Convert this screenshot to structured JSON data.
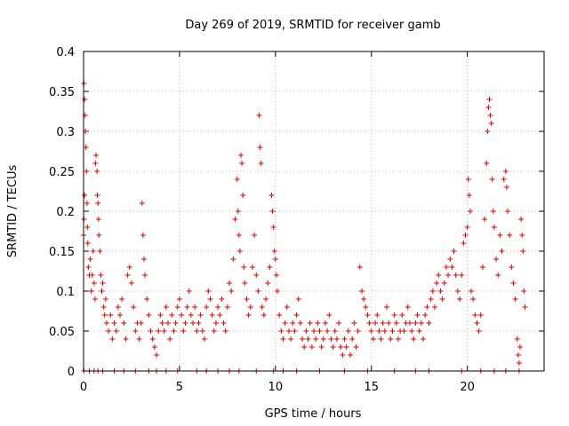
{
  "chart_data": {
    "type": "scatter",
    "title": "Day 269 of 2019, SRMTID for receiver gamb",
    "xlabel": "GPS time / hours",
    "ylabel": "SRMTID / TECUs",
    "xlim": [
      0,
      24
    ],
    "ylim": [
      0,
      0.4
    ],
    "xticks": [
      0,
      5,
      10,
      15,
      20
    ],
    "xtick_labels": [
      "0",
      "5",
      "10",
      "15",
      "20"
    ],
    "yticks": [
      0,
      0.05,
      0.1,
      0.15,
      0.2,
      0.25,
      0.3,
      0.35,
      0.4
    ],
    "ytick_labels": [
      "0",
      "0.05",
      "0.1",
      "0.15",
      "0.2",
      "0.25",
      "0.3",
      "0.35",
      "0.4"
    ],
    "grid": true,
    "marker": "+",
    "series": [
      {
        "name": "SRMTID",
        "color": "#e00000",
        "points": [
          [
            0.02,
            0.36
          ],
          [
            0.05,
            0.34
          ],
          [
            0.08,
            0.32
          ],
          [
            0.1,
            0.3
          ],
          [
            0.12,
            0.28
          ],
          [
            0.05,
            0.22
          ],
          [
            0.02,
            0.19
          ],
          [
            0.0,
            0.17
          ],
          [
            0.15,
            0.25
          ],
          [
            0.18,
            0.21
          ],
          [
            0.2,
            0.18
          ],
          [
            0.22,
            0.16
          ],
          [
            0.25,
            0.13
          ],
          [
            0.3,
            0.12
          ],
          [
            0.35,
            0.14
          ],
          [
            0.4,
            0.1
          ],
          [
            0.45,
            0.12
          ],
          [
            0.5,
            0.15
          ],
          [
            0.55,
            0.11
          ],
          [
            0.6,
            0.09
          ],
          [
            0.62,
            0.26
          ],
          [
            0.65,
            0.27
          ],
          [
            0.7,
            0.25
          ],
          [
            0.72,
            0.22
          ],
          [
            0.75,
            0.21
          ],
          [
            0.78,
            0.19
          ],
          [
            0.8,
            0.17
          ],
          [
            0.85,
            0.15
          ],
          [
            0.9,
            0.12
          ],
          [
            0.95,
            0.1
          ],
          [
            1.0,
            0.11
          ],
          [
            1.05,
            0.08
          ],
          [
            1.1,
            0.07
          ],
          [
            1.15,
            0.09
          ],
          [
            1.2,
            0.06
          ],
          [
            1.3,
            0.05
          ],
          [
            1.4,
            0.07
          ],
          [
            1.5,
            0.04
          ],
          [
            1.6,
            0.06
          ],
          [
            1.7,
            0.05
          ],
          [
            1.8,
            0.08
          ],
          [
            1.9,
            0.07
          ],
          [
            2.0,
            0.09
          ],
          [
            2.1,
            0.06
          ],
          [
            2.2,
            0.04
          ],
          [
            2.3,
            0.12
          ],
          [
            2.4,
            0.13
          ],
          [
            2.5,
            0.11
          ],
          [
            2.6,
            0.08
          ],
          [
            2.7,
            0.05
          ],
          [
            2.8,
            0.06
          ],
          [
            2.9,
            0.04
          ],
          [
            3.0,
            0.06
          ],
          [
            3.05,
            0.21
          ],
          [
            3.1,
            0.17
          ],
          [
            3.15,
            0.14
          ],
          [
            3.2,
            0.12
          ],
          [
            3.3,
            0.09
          ],
          [
            3.4,
            0.07
          ],
          [
            3.5,
            0.05
          ],
          [
            3.6,
            0.04
          ],
          [
            3.7,
            0.03
          ],
          [
            3.8,
            0.02
          ],
          [
            3.9,
            0.05
          ],
          [
            4.0,
            0.07
          ],
          [
            4.1,
            0.06
          ],
          [
            4.2,
            0.05
          ],
          [
            4.3,
            0.08
          ],
          [
            4.4,
            0.06
          ],
          [
            4.5,
            0.04
          ],
          [
            4.6,
            0.07
          ],
          [
            4.7,
            0.05
          ],
          [
            4.8,
            0.06
          ],
          [
            4.9,
            0.08
          ],
          [
            5.0,
            0.09
          ],
          [
            5.1,
            0.07
          ],
          [
            5.2,
            0.05
          ],
          [
            5.3,
            0.06
          ],
          [
            5.4,
            0.08
          ],
          [
            5.5,
            0.1
          ],
          [
            5.6,
            0.07
          ],
          [
            5.7,
            0.06
          ],
          [
            5.8,
            0.08
          ],
          [
            5.9,
            0.05
          ],
          [
            6.0,
            0.06
          ],
          [
            6.1,
            0.07
          ],
          [
            6.2,
            0.05
          ],
          [
            6.3,
            0.04
          ],
          [
            6.4,
            0.08
          ],
          [
            6.5,
            0.1
          ],
          [
            6.6,
            0.09
          ],
          [
            6.7,
            0.07
          ],
          [
            6.8,
            0.05
          ],
          [
            6.9,
            0.06
          ],
          [
            7.0,
            0.08
          ],
          [
            7.1,
            0.07
          ],
          [
            7.2,
            0.09
          ],
          [
            7.3,
            0.06
          ],
          [
            7.4,
            0.05
          ],
          [
            7.5,
            0.08
          ],
          [
            7.6,
            0.11
          ],
          [
            7.7,
            0.1
          ],
          [
            7.8,
            0.14
          ],
          [
            7.9,
            0.19
          ],
          [
            8.0,
            0.24
          ],
          [
            8.05,
            0.2
          ],
          [
            8.1,
            0.17
          ],
          [
            8.15,
            0.15
          ],
          [
            8.2,
            0.27
          ],
          [
            8.25,
            0.26
          ],
          [
            8.3,
            0.22
          ],
          [
            8.35,
            0.13
          ],
          [
            8.4,
            0.11
          ],
          [
            8.5,
            0.09
          ],
          [
            8.6,
            0.07
          ],
          [
            8.7,
            0.08
          ],
          [
            8.8,
            0.13
          ],
          [
            8.9,
            0.17
          ],
          [
            9.0,
            0.12
          ],
          [
            9.1,
            0.1
          ],
          [
            9.15,
            0.32
          ],
          [
            9.2,
            0.28
          ],
          [
            9.25,
            0.26
          ],
          [
            9.3,
            0.08
          ],
          [
            9.4,
            0.07
          ],
          [
            9.5,
            0.09
          ],
          [
            9.6,
            0.11
          ],
          [
            9.7,
            0.13
          ],
          [
            9.8,
            0.22
          ],
          [
            9.85,
            0.2
          ],
          [
            9.9,
            0.18
          ],
          [
            9.95,
            0.15
          ],
          [
            10.0,
            0.14
          ],
          [
            10.05,
            0.12
          ],
          [
            10.1,
            0.1
          ],
          [
            10.2,
            0.07
          ],
          [
            10.3,
            0.05
          ],
          [
            10.4,
            0.04
          ],
          [
            10.5,
            0.06
          ],
          [
            10.6,
            0.08
          ],
          [
            10.7,
            0.05
          ],
          [
            10.8,
            0.04
          ],
          [
            10.9,
            0.06
          ],
          [
            11.0,
            0.05
          ],
          [
            11.1,
            0.07
          ],
          [
            11.2,
            0.09
          ],
          [
            11.3,
            0.06
          ],
          [
            11.4,
            0.04
          ],
          [
            11.5,
            0.03
          ],
          [
            11.6,
            0.05
          ],
          [
            11.7,
            0.04
          ],
          [
            11.8,
            0.06
          ],
          [
            11.9,
            0.03
          ],
          [
            12.0,
            0.05
          ],
          [
            12.1,
            0.04
          ],
          [
            12.2,
            0.06
          ],
          [
            12.3,
            0.05
          ],
          [
            12.4,
            0.03
          ],
          [
            12.5,
            0.04
          ],
          [
            12.6,
            0.06
          ],
          [
            12.7,
            0.05
          ],
          [
            12.8,
            0.07
          ],
          [
            12.9,
            0.04
          ],
          [
            13.0,
            0.03
          ],
          [
            13.1,
            0.05
          ],
          [
            13.2,
            0.04
          ],
          [
            13.3,
            0.06
          ],
          [
            13.4,
            0.03
          ],
          [
            13.5,
            0.02
          ],
          [
            13.6,
            0.04
          ],
          [
            13.7,
            0.03
          ],
          [
            13.8,
            0.05
          ],
          [
            13.9,
            0.02
          ],
          [
            14.0,
            0.04
          ],
          [
            14.1,
            0.06
          ],
          [
            14.2,
            0.03
          ],
          [
            14.3,
            0.05
          ],
          [
            14.4,
            0.13
          ],
          [
            14.5,
            0.1
          ],
          [
            14.6,
            0.09
          ],
          [
            14.7,
            0.08
          ],
          [
            14.8,
            0.07
          ],
          [
            14.9,
            0.06
          ],
          [
            15.0,
            0.05
          ],
          [
            15.1,
            0.04
          ],
          [
            15.2,
            0.06
          ],
          [
            15.3,
            0.07
          ],
          [
            15.4,
            0.05
          ],
          [
            15.5,
            0.04
          ],
          [
            15.6,
            0.06
          ],
          [
            15.7,
            0.05
          ],
          [
            15.8,
            0.08
          ],
          [
            15.9,
            0.06
          ],
          [
            16.0,
            0.04
          ],
          [
            16.1,
            0.05
          ],
          [
            16.2,
            0.07
          ],
          [
            16.3,
            0.06
          ],
          [
            16.4,
            0.04
          ],
          [
            16.5,
            0.05
          ],
          [
            16.6,
            0.07
          ],
          [
            16.7,
            0.05
          ],
          [
            16.8,
            0.06
          ],
          [
            16.9,
            0.08
          ],
          [
            17.0,
            0.06
          ],
          [
            17.1,
            0.05
          ],
          [
            17.2,
            0.04
          ],
          [
            17.3,
            0.06
          ],
          [
            17.4,
            0.07
          ],
          [
            17.5,
            0.05
          ],
          [
            17.6,
            0.06
          ],
          [
            17.7,
            0.04
          ],
          [
            17.8,
            0.07
          ],
          [
            17.9,
            0.08
          ],
          [
            18.0,
            0.06
          ],
          [
            18.1,
            0.09
          ],
          [
            18.2,
            0.1
          ],
          [
            18.3,
            0.08
          ],
          [
            18.4,
            0.11
          ],
          [
            18.5,
            0.12
          ],
          [
            18.6,
            0.1
          ],
          [
            18.7,
            0.09
          ],
          [
            18.8,
            0.11
          ],
          [
            18.9,
            0.13
          ],
          [
            19.0,
            0.12
          ],
          [
            19.1,
            0.14
          ],
          [
            19.2,
            0.13
          ],
          [
            19.3,
            0.15
          ],
          [
            19.4,
            0.12
          ],
          [
            19.5,
            0.1
          ],
          [
            19.6,
            0.09
          ],
          [
            19.7,
            0.12
          ],
          [
            19.8,
            0.16
          ],
          [
            19.9,
            0.17
          ],
          [
            20.0,
            0.18
          ],
          [
            20.05,
            0.24
          ],
          [
            20.1,
            0.22
          ],
          [
            20.15,
            0.2
          ],
          [
            20.2,
            0.1
          ],
          [
            20.3,
            0.09
          ],
          [
            20.4,
            0.07
          ],
          [
            20.5,
            0.06
          ],
          [
            20.6,
            0.05
          ],
          [
            20.7,
            0.07
          ],
          [
            20.8,
            0.13
          ],
          [
            20.9,
            0.19
          ],
          [
            21.0,
            0.26
          ],
          [
            21.05,
            0.3
          ],
          [
            21.1,
            0.33
          ],
          [
            21.15,
            0.34
          ],
          [
            21.2,
            0.32
          ],
          [
            21.25,
            0.31
          ],
          [
            21.3,
            0.24
          ],
          [
            21.35,
            0.2
          ],
          [
            21.4,
            0.18
          ],
          [
            21.5,
            0.14
          ],
          [
            21.6,
            0.12
          ],
          [
            21.7,
            0.17
          ],
          [
            21.8,
            0.15
          ],
          [
            21.9,
            0.24
          ],
          [
            22.0,
            0.25
          ],
          [
            22.05,
            0.23
          ],
          [
            22.1,
            0.2
          ],
          [
            22.2,
            0.17
          ],
          [
            22.3,
            0.13
          ],
          [
            22.4,
            0.11
          ],
          [
            22.5,
            0.09
          ],
          [
            22.6,
            0.04
          ],
          [
            22.65,
            0.02
          ],
          [
            22.7,
            0.01
          ],
          [
            22.75,
            0.03
          ],
          [
            22.8,
            0.19
          ],
          [
            22.85,
            0.17
          ],
          [
            22.9,
            0.15
          ],
          [
            22.95,
            0.1
          ],
          [
            23.0,
            0.08
          ],
          [
            0.02,
            0.0
          ],
          [
            0.3,
            0.0
          ],
          [
            0.55,
            0.0
          ],
          [
            0.75,
            0.0
          ],
          [
            1.0,
            0.0
          ],
          [
            1.6,
            0.0
          ],
          [
            2.1,
            0.0
          ],
          [
            2.7,
            0.0
          ],
          [
            3.4,
            0.0
          ],
          [
            3.8,
            0.0
          ],
          [
            4.3,
            0.0
          ],
          [
            4.9,
            0.0
          ],
          [
            5.9,
            0.0
          ],
          [
            6.4,
            0.0
          ],
          [
            7.0,
            0.0
          ],
          [
            7.6,
            0.0
          ],
          [
            8.1,
            0.0
          ],
          [
            9.0,
            0.0
          ],
          [
            9.9,
            0.0
          ],
          [
            10.4,
            0.0
          ],
          [
            11.1,
            0.0
          ],
          [
            12.3,
            0.0
          ],
          [
            13.6,
            0.0
          ],
          [
            14.8,
            0.0
          ],
          [
            16.2,
            0.0
          ],
          [
            17.3,
            0.0
          ],
          [
            18.0,
            0.0
          ],
          [
            19.7,
            0.0
          ],
          [
            20.7,
            0.0
          ],
          [
            21.4,
            0.0
          ],
          [
            22.0,
            0.0
          ],
          [
            22.7,
            0.0
          ]
        ]
      }
    ]
  }
}
